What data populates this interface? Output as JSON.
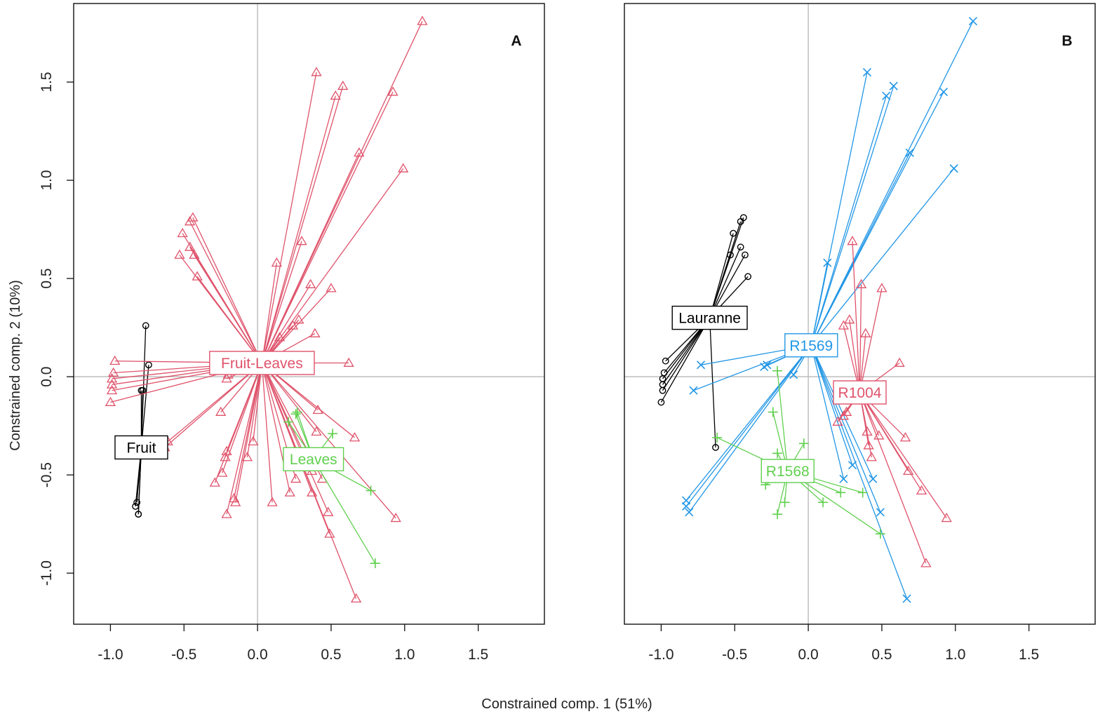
{
  "figure": {
    "xlabel": "Constrained comp. 1 (51%)",
    "ylabel": "Constrained comp. 2 (10%)"
  },
  "colors": {
    "black": "#000000",
    "red": "#df536b",
    "green": "#61d04f",
    "blue": "#2297e6",
    "zero_line": "#bebebe"
  },
  "chart_data": [
    {
      "type": "scatter",
      "panel_label": "A",
      "xlim": [
        -1.25,
        1.95
      ],
      "ylim": [
        -1.26,
        1.9
      ],
      "x_ticks": [
        -1.0,
        -0.5,
        0.0,
        0.5,
        1.0,
        1.5
      ],
      "y_ticks": [
        -1.0,
        -0.5,
        0.0,
        0.5,
        1.0,
        1.5
      ],
      "x_tick_labels": [
        "-1.0",
        "-0.5",
        "0.0",
        "0.5",
        "1.0",
        "1.5"
      ],
      "y_tick_labels": [
        "-1.0",
        "-0.5",
        "0.0",
        "0.5",
        "1.0",
        "1.5"
      ],
      "grid": false,
      "zero_lines": true,
      "groups": [
        {
          "name": "Fruit",
          "color": "black",
          "marker": "circle",
          "centroid": [
            -0.79,
            -0.36
          ],
          "points": [
            [
              -0.76,
              0.26
            ],
            [
              -0.74,
              0.06
            ],
            [
              -0.79,
              -0.07
            ],
            [
              -0.78,
              -0.07
            ],
            [
              -0.82,
              -0.64
            ],
            [
              -0.83,
              -0.66
            ],
            [
              -0.81,
              -0.7
            ],
            [
              -0.81,
              -0.7
            ]
          ]
        },
        {
          "name": "Fruit-Leaves",
          "color": "red",
          "marker": "triangle",
          "centroid": [
            0.03,
            0.07
          ],
          "points": [
            [
              1.12,
              1.81
            ],
            [
              0.4,
              1.55
            ],
            [
              0.58,
              1.48
            ],
            [
              0.53,
              1.43
            ],
            [
              0.92,
              1.45
            ],
            [
              0.69,
              1.14
            ],
            [
              0.99,
              1.06
            ],
            [
              -0.44,
              0.81
            ],
            [
              -0.46,
              0.79
            ],
            [
              -0.51,
              0.73
            ],
            [
              -0.46,
              0.66
            ],
            [
              -0.43,
              0.62
            ],
            [
              -0.53,
              0.62
            ],
            [
              -0.41,
              0.51
            ],
            [
              0.3,
              0.69
            ],
            [
              0.13,
              0.58
            ],
            [
              0.36,
              0.47
            ],
            [
              0.5,
              0.45
            ],
            [
              0.28,
              0.29
            ],
            [
              0.24,
              0.26
            ],
            [
              0.39,
              0.22
            ],
            [
              0.15,
              0.2
            ],
            [
              -0.97,
              0.08
            ],
            [
              -0.98,
              0.02
            ],
            [
              -0.99,
              -0.01
            ],
            [
              -0.99,
              -0.04
            ],
            [
              -0.99,
              -0.07
            ],
            [
              -1.0,
              -0.13
            ],
            [
              0.62,
              0.07
            ],
            [
              -0.2,
              0.01
            ],
            [
              -0.21,
              -0.01
            ],
            [
              -0.25,
              -0.18
            ],
            [
              -0.21,
              -0.38
            ],
            [
              -0.22,
              -0.41
            ],
            [
              -0.07,
              -0.41
            ],
            [
              -0.03,
              -0.33
            ],
            [
              -0.29,
              -0.54
            ],
            [
              -0.24,
              -0.49
            ],
            [
              -0.16,
              -0.62
            ],
            [
              -0.15,
              -0.64
            ],
            [
              -0.21,
              -0.7
            ],
            [
              0.1,
              -0.64
            ],
            [
              0.22,
              -0.59
            ],
            [
              0.26,
              -0.52
            ],
            [
              0.41,
              -0.17
            ],
            [
              0.4,
              -0.28
            ],
            [
              0.37,
              -0.48
            ],
            [
              0.44,
              -0.52
            ],
            [
              0.37,
              -0.59
            ],
            [
              0.48,
              -0.69
            ],
            [
              0.49,
              -0.8
            ],
            [
              0.66,
              -0.31
            ],
            [
              0.94,
              -0.72
            ],
            [
              0.67,
              -1.13
            ],
            [
              -0.63,
              -0.36
            ],
            [
              -0.61,
              -0.33
            ]
          ]
        },
        {
          "name": "Leaves",
          "color": "green",
          "marker": "plus",
          "centroid": [
            0.38,
            -0.42
          ],
          "points": [
            [
              0.27,
              -0.18
            ],
            [
              0.26,
              -0.19
            ],
            [
              0.21,
              -0.23
            ],
            [
              0.51,
              -0.29
            ],
            [
              0.77,
              -0.58
            ],
            [
              0.8,
              -0.95
            ]
          ]
        }
      ]
    },
    {
      "type": "scatter",
      "panel_label": "B",
      "xlim": [
        -1.25,
        1.95
      ],
      "ylim": [
        -1.26,
        1.9
      ],
      "x_ticks": [
        -1.0,
        -0.5,
        0.0,
        0.5,
        1.0,
        1.5
      ],
      "x_tick_labels": [
        "-1.0",
        "-0.5",
        "0.0",
        "0.5",
        "1.0",
        "1.5"
      ],
      "grid": false,
      "zero_lines": true,
      "groups": [
        {
          "name": "Lauranne",
          "color": "black",
          "marker": "circle",
          "centroid": [
            -0.67,
            0.3
          ],
          "points": [
            [
              -0.44,
              0.81
            ],
            [
              -0.46,
              0.79
            ],
            [
              -0.51,
              0.73
            ],
            [
              -0.46,
              0.66
            ],
            [
              -0.43,
              0.62
            ],
            [
              -0.53,
              0.62
            ],
            [
              -0.41,
              0.51
            ],
            [
              -0.97,
              0.08
            ],
            [
              -0.98,
              0.02
            ],
            [
              -0.99,
              -0.01
            ],
            [
              -0.99,
              -0.04
            ],
            [
              -0.99,
              -0.07
            ],
            [
              -1.0,
              -0.13
            ],
            [
              -0.63,
              -0.36
            ]
          ]
        },
        {
          "name": "R1569",
          "color": "blue",
          "marker": "cross",
          "centroid": [
            0.02,
            0.16
          ],
          "points": [
            [
              1.12,
              1.81
            ],
            [
              0.4,
              1.55
            ],
            [
              0.58,
              1.48
            ],
            [
              0.53,
              1.43
            ],
            [
              0.92,
              1.45
            ],
            [
              0.69,
              1.14
            ],
            [
              0.99,
              1.06
            ],
            [
              0.13,
              0.58
            ],
            [
              -0.73,
              0.06
            ],
            [
              -0.28,
              0.06
            ],
            [
              -0.3,
              0.05
            ],
            [
              -0.1,
              0.01
            ],
            [
              -0.78,
              -0.07
            ],
            [
              -0.83,
              -0.63
            ],
            [
              -0.83,
              -0.66
            ],
            [
              -0.81,
              -0.69
            ],
            [
              0.24,
              -0.52
            ],
            [
              0.3,
              -0.45
            ],
            [
              0.44,
              -0.52
            ],
            [
              0.49,
              -0.69
            ],
            [
              0.67,
              -1.13
            ]
          ]
        },
        {
          "name": "R1004",
          "color": "red",
          "marker": "triangle",
          "centroid": [
            0.35,
            -0.08
          ],
          "points": [
            [
              0.3,
              0.69
            ],
            [
              0.36,
              0.47
            ],
            [
              0.5,
              0.45
            ],
            [
              0.28,
              0.29
            ],
            [
              0.24,
              0.26
            ],
            [
              0.39,
              0.22
            ],
            [
              0.62,
              0.07
            ],
            [
              0.2,
              -0.23
            ],
            [
              0.24,
              -0.2
            ],
            [
              0.26,
              -0.18
            ],
            [
              0.4,
              -0.28
            ],
            [
              0.41,
              -0.35
            ],
            [
              0.43,
              -0.41
            ],
            [
              0.48,
              -0.3
            ],
            [
              0.66,
              -0.31
            ],
            [
              0.68,
              -0.48
            ],
            [
              0.77,
              -0.58
            ],
            [
              0.94,
              -0.72
            ],
            [
              0.8,
              -0.95
            ]
          ]
        },
        {
          "name": "R1568",
          "color": "green",
          "marker": "plus",
          "centroid": [
            -0.14,
            -0.48
          ],
          "points": [
            [
              -0.21,
              0.03
            ],
            [
              -0.24,
              -0.18
            ],
            [
              -0.21,
              -0.39
            ],
            [
              -0.03,
              -0.34
            ],
            [
              -0.62,
              -0.31
            ],
            [
              -0.29,
              -0.55
            ],
            [
              -0.16,
              -0.64
            ],
            [
              -0.21,
              -0.7
            ],
            [
              0.1,
              -0.64
            ],
            [
              0.22,
              -0.59
            ],
            [
              0.37,
              -0.59
            ],
            [
              0.49,
              -0.8
            ]
          ]
        }
      ]
    }
  ]
}
